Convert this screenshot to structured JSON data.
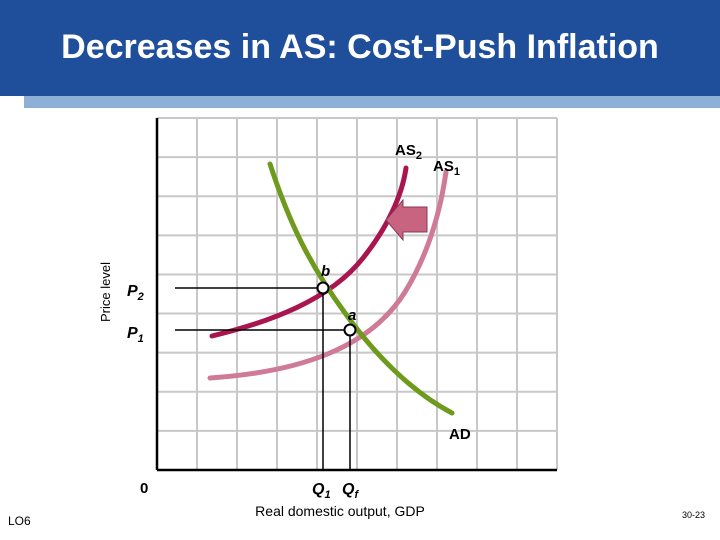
{
  "title": "Decreases in AS: Cost-Push Inflation",
  "labels": {
    "ylabel": "Price level",
    "xlabel": "Real domestic output, GDP",
    "origin": "0",
    "p2": "P",
    "p2_sub": "2",
    "p1": "P",
    "p1_sub": "1",
    "q1": "Q",
    "q1_sub": "1",
    "qf": "Q",
    "qf_sub": "f",
    "as2": "AS",
    "as2_sub": "2",
    "as1": "AS",
    "as1_sub": "1",
    "ad": "AD",
    "point_b": "b",
    "point_a": "a"
  },
  "colors": {
    "header": "#1f4e9a",
    "header_band": "#8fb0d6",
    "as2_curve": "#a8154f",
    "as1_curve": "#cf7a98",
    "ad_curve": "#6e9a1e",
    "arrow": "#c86380",
    "grid": "#c8c8c8"
  },
  "footer": {
    "lo": "LO6",
    "page": "30-23"
  }
}
